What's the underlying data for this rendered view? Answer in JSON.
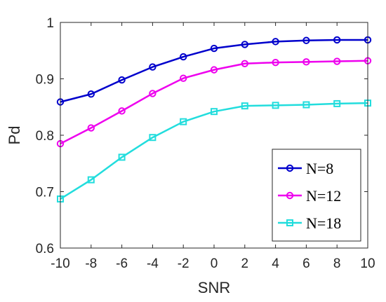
{
  "chart_data": {
    "type": "line",
    "title": "",
    "xlabel": "SNR",
    "ylabel": "Pd",
    "xlim": [
      -10,
      10
    ],
    "ylim": [
      0.6,
      1.0
    ],
    "x": [
      -10,
      -8,
      -6,
      -4,
      -2,
      0,
      2,
      4,
      6,
      8,
      10
    ],
    "xticks": [
      "-10",
      "-8",
      "-6",
      "-4",
      "-2",
      "0",
      "2",
      "4",
      "6",
      "8",
      "10"
    ],
    "yticks": [
      "0.6",
      "0.7",
      "0.8",
      "0.9",
      "1"
    ],
    "grid": false,
    "legend_position": "bottom-right",
    "series": [
      {
        "name": "N=8",
        "color": "#0000cc",
        "marker": "circle",
        "values": [
          0.859,
          0.873,
          0.898,
          0.921,
          0.939,
          0.954,
          0.961,
          0.966,
          0.968,
          0.969,
          0.969
        ]
      },
      {
        "name": "N=12",
        "color": "#ee00ee",
        "marker": "circle",
        "values": [
          0.785,
          0.813,
          0.843,
          0.874,
          0.901,
          0.916,
          0.927,
          0.929,
          0.93,
          0.931,
          0.932
        ]
      },
      {
        "name": "N=18",
        "color": "#22dddd",
        "marker": "square",
        "values": [
          0.687,
          0.721,
          0.761,
          0.796,
          0.824,
          0.842,
          0.852,
          0.853,
          0.854,
          0.856,
          0.857
        ]
      }
    ]
  }
}
